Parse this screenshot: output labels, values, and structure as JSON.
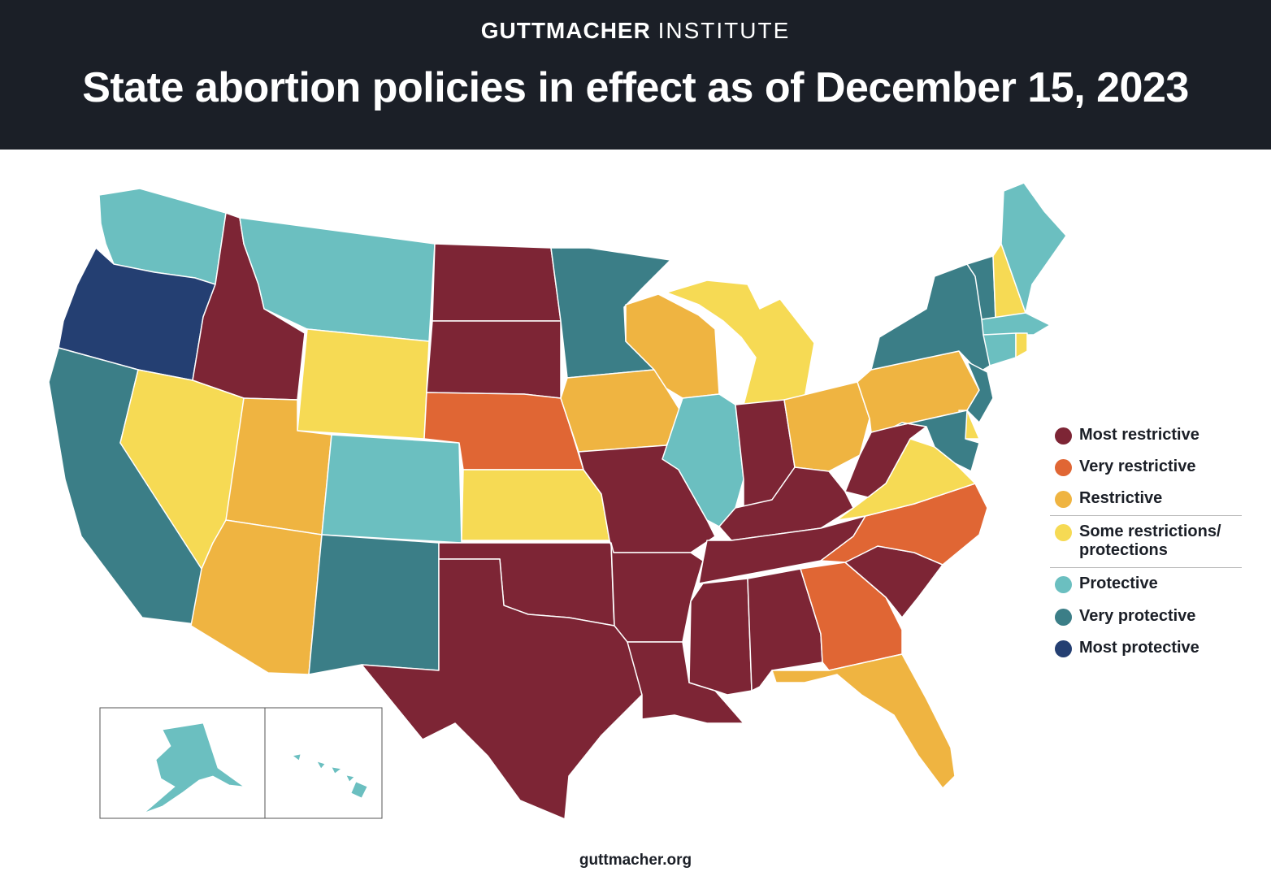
{
  "header": {
    "org_bold": "GUTTMACHER",
    "org_regular": "INSTITUTE",
    "title": "State abortion policies in effect as of December 15, 2023"
  },
  "footer": {
    "url": "guttmacher.org"
  },
  "legend": [
    {
      "key": "most_restrictive",
      "label": "Most restrictive",
      "color": "#7d2535"
    },
    {
      "key": "very_restrictive",
      "label": "Very restrictive",
      "color": "#e06634"
    },
    {
      "key": "restrictive",
      "label": "Restrictive",
      "color": "#efb441"
    },
    {
      "key": "some",
      "label": "Some restrictions/ protections",
      "color": "#f6da54"
    },
    {
      "key": "protective",
      "label": "Protective",
      "color": "#6bbfc0"
    },
    {
      "key": "very_protective",
      "label": "Very protective",
      "color": "#3b7e87"
    },
    {
      "key": "most_protective",
      "label": "Most protective",
      "color": "#243f72"
    }
  ],
  "states": {
    "WA": "protective",
    "OR": "most_protective",
    "CA": "very_protective",
    "ID": "most_restrictive",
    "NV": "some",
    "MT": "protective",
    "WY": "some",
    "UT": "restrictive",
    "AZ": "restrictive",
    "CO": "protective",
    "NM": "very_protective",
    "ND": "most_restrictive",
    "SD": "most_restrictive",
    "NE": "very_restrictive",
    "KS": "some",
    "OK": "most_restrictive",
    "TX": "most_restrictive",
    "MN": "very_protective",
    "IA": "restrictive",
    "MO": "most_restrictive",
    "AR": "most_restrictive",
    "LA": "most_restrictive",
    "WI": "restrictive",
    "IL": "protective",
    "MI": "some",
    "IN": "most_restrictive",
    "OH": "restrictive",
    "KY": "most_restrictive",
    "TN": "most_restrictive",
    "MS": "most_restrictive",
    "AL": "most_restrictive",
    "GA": "very_restrictive",
    "FL": "restrictive",
    "SC": "most_restrictive",
    "NC": "very_restrictive",
    "VA": "some",
    "WV": "most_restrictive",
    "PA": "restrictive",
    "NY": "very_protective",
    "VT": "very_protective",
    "NH": "some",
    "ME": "protective",
    "MA": "protective",
    "CT": "protective",
    "RI": "some",
    "NJ": "very_protective",
    "DE": "some",
    "MD": "very_protective",
    "AK": "protective",
    "HI": "protective"
  }
}
